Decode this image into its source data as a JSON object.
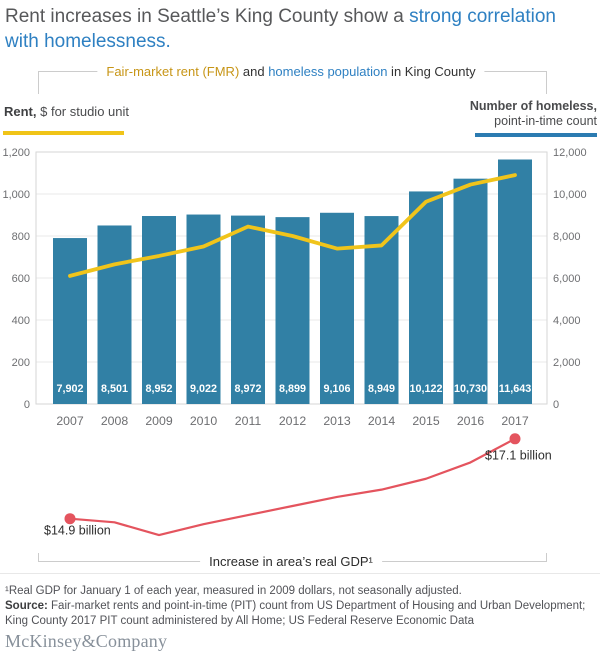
{
  "title": {
    "line1_gray": "Rent increases in Seattle’s King County show a ",
    "line1_blue": "strong correlation",
    "line2_blue": "with homelessness."
  },
  "subtitle": {
    "part_gold": "Fair-market rent (FMR)",
    "part_mid": " and ",
    "part_blue": "homeless population",
    "part_end": " in King County"
  },
  "legend": {
    "left_bold": "Rent,",
    "left_rest": " $ for studio unit",
    "right_bold": "Number of homeless,",
    "right_rest": "point-in-time count"
  },
  "colors": {
    "bar_blue": "#3180a5",
    "line_yellow": "#f0c41b",
    "gdp_red": "#e4545e",
    "accent_blue": "#2e80c2",
    "accent_gold": "#c79516",
    "grid": "#e8e8e8",
    "plot_border": "#d6d6d6",
    "tick_gray": "#6d6e71"
  },
  "chart_data": [
    {
      "type": "bar",
      "title": "Fair-market rent (FMR) and homeless population in King County",
      "categories": [
        "2007",
        "2008",
        "2009",
        "2010",
        "2011",
        "2012",
        "2013",
        "2014",
        "2015",
        "2016",
        "2017"
      ],
      "series": [
        {
          "name": "Homeless population, point-in-time count",
          "type": "bar",
          "axis": "right",
          "values": [
            7902,
            8501,
            8952,
            9022,
            8972,
            8899,
            9106,
            8949,
            10122,
            10730,
            11643
          ],
          "labels": [
            "7,902",
            "8,501",
            "8,952",
            "9,022",
            "8,972",
            "8,899",
            "9,106",
            "8,949",
            "10,122",
            "10,730",
            "11,643"
          ]
        },
        {
          "name": "Fair-market rent, $ for studio unit",
          "type": "line",
          "axis": "left",
          "values": [
            610,
            665,
            705,
            750,
            845,
            800,
            740,
            755,
            963,
            1045,
            1090
          ]
        }
      ],
      "left_axis": {
        "label": "Rent, $ for studio unit",
        "min": 0,
        "max": 1200,
        "step": 200,
        "ticks": [
          "0",
          "200",
          "400",
          "600",
          "800",
          "1,000",
          "1,200"
        ]
      },
      "right_axis": {
        "label": "Number of homeless, point-in-time count",
        "min": 0,
        "max": 12000,
        "step": 2000,
        "ticks": [
          "0",
          "2,000",
          "4,000",
          "6,000",
          "8,000",
          "10,000",
          "12,000"
        ]
      },
      "grid": true,
      "legend_position": "top"
    },
    {
      "type": "line",
      "title": "Increase in area’s real GDP¹",
      "x": [
        "2007",
        "2008",
        "2009",
        "2010",
        "2011",
        "2012",
        "2013",
        "2014",
        "2015",
        "2016",
        "2017"
      ],
      "values_billion_usd": [
        14.9,
        14.8,
        14.45,
        14.75,
        15.0,
        15.25,
        15.5,
        15.7,
        16.0,
        16.45,
        17.1
      ],
      "start_label": "$14.9 billion",
      "end_label": "$17.1 billion",
      "caption": "Increase in area’s real GDP¹"
    }
  ],
  "footnote": {
    "line1": "¹Real GDP for January 1 of each year, measured in 2009 dollars, not seasonally adjusted.",
    "source_label": "Source:",
    "source_line1": " Fair-market rents and point-in-time (PIT) count from US Department of Housing and Urban Development;",
    "source_line2": "King County 2017 PIT count administered by All Home; US Federal Reserve Economic Data"
  },
  "footer": "McKinsey&Company"
}
